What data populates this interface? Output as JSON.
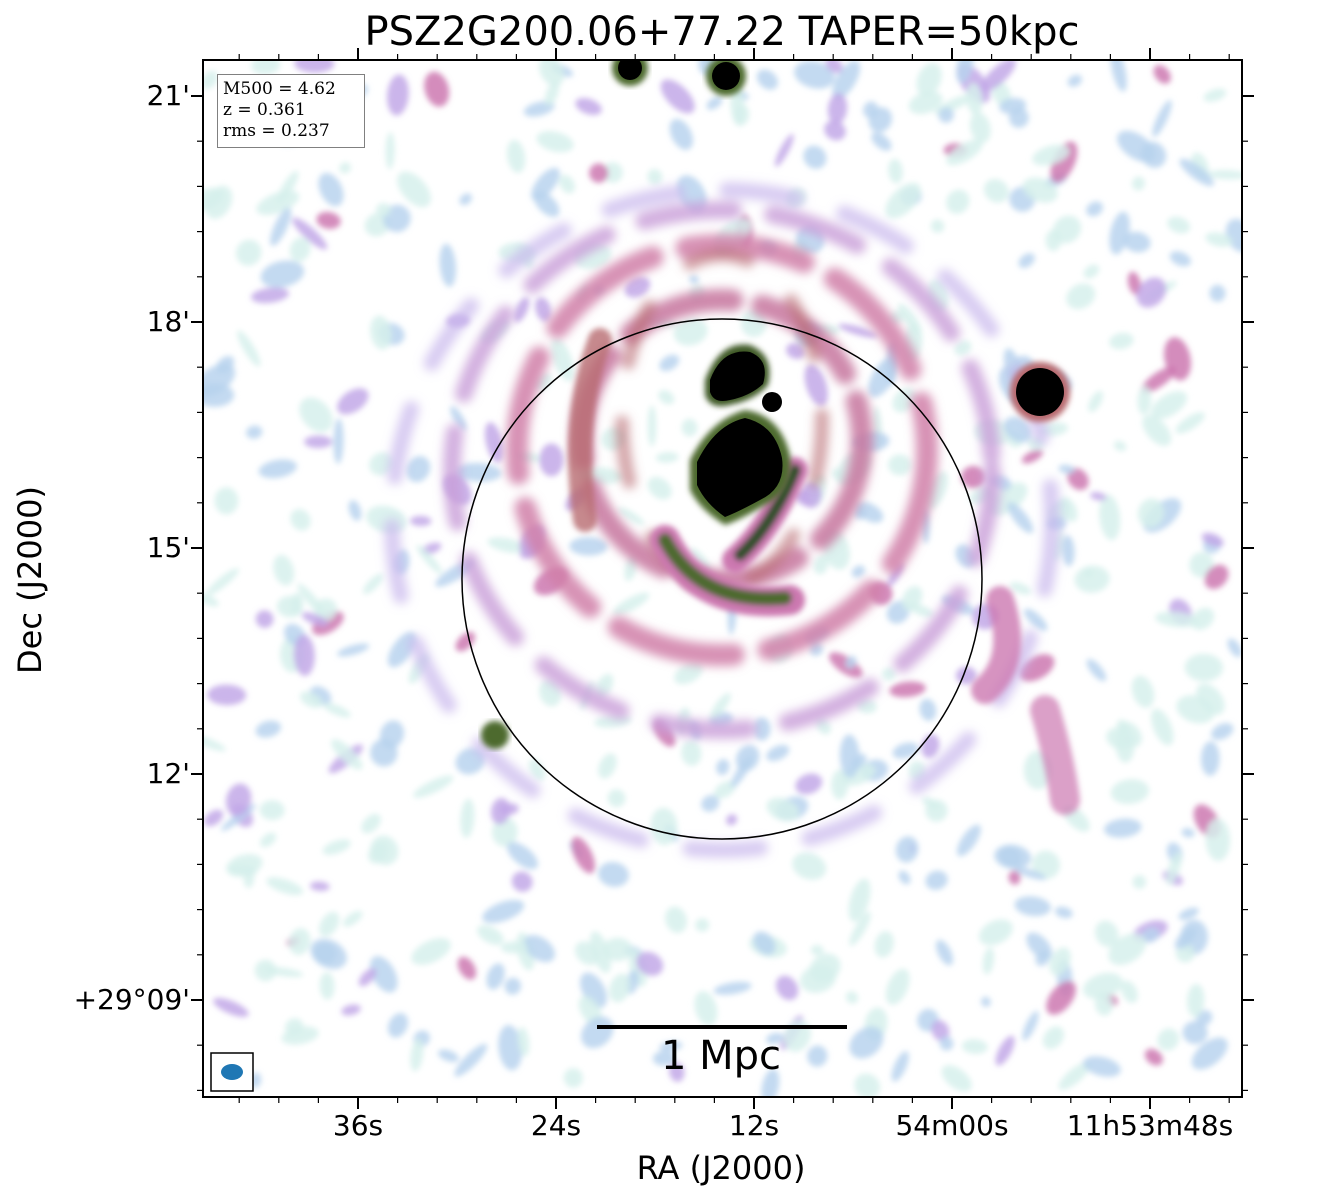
{
  "title": "PSZ2G200.06+77.22 TAPER=50kpc",
  "axes": {
    "xlabel": "RA (J2000)",
    "ylabel": "Dec (J2000)",
    "ra_ticks": [
      "36s",
      "24s",
      "12s",
      "54m00s",
      "11h53m48s"
    ],
    "dec_ticks": [
      "21'",
      "18'",
      "15'",
      "12'",
      "+29°09'"
    ]
  },
  "info": {
    "mass": "M500 = 4.62",
    "redshift": "z = 0.361",
    "rms": "rms = 0.237"
  },
  "scalebar": {
    "label": "1 Mpc"
  },
  "beam": {
    "color": "#1f77b4"
  },
  "colormap": [
    "#d6f0ec",
    "#b9d3ef",
    "#c2a8e8",
    "#cc78b0",
    "#b86a70",
    "#4e6a2e",
    "#0b2d18",
    "#000000"
  ],
  "circle_color": "#000000"
}
